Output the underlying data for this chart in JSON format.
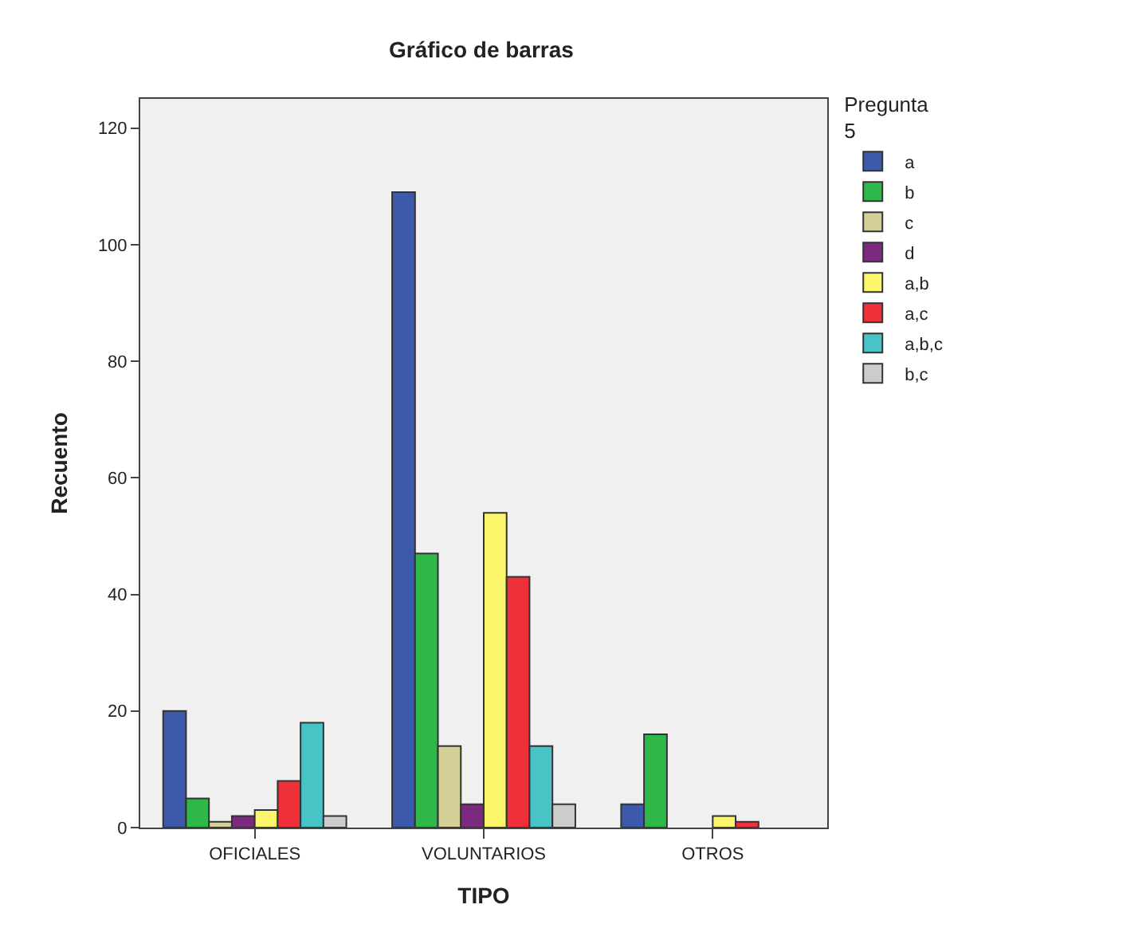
{
  "chart_data": {
    "type": "bar",
    "title": "Gráfico de barras",
    "xlabel": "TIPO",
    "ylabel": "Recuento",
    "legend_title": "Pregunta\n5",
    "categories": [
      "OFICIALES",
      "VOLUNTARIOS",
      "OTROS"
    ],
    "series": [
      {
        "name": "a",
        "color": "#3d59ab",
        "values": [
          20,
          109,
          4
        ]
      },
      {
        "name": "b",
        "color": "#2fb84a",
        "values": [
          5,
          47,
          16
        ]
      },
      {
        "name": "c",
        "color": "#d4cf96",
        "values": [
          1,
          14,
          null
        ]
      },
      {
        "name": "d",
        "color": "#7b2a80",
        "values": [
          2,
          4,
          null
        ]
      },
      {
        "name": "a,b",
        "color": "#fbf66c",
        "values": [
          3,
          54,
          2
        ]
      },
      {
        "name": "a,c",
        "color": "#ee3039",
        "values": [
          8,
          43,
          1
        ]
      },
      {
        "name": "a,b,c",
        "color": "#48c3c6",
        "values": [
          18,
          14,
          null
        ]
      },
      {
        "name": "b,c",
        "color": "#cccccc",
        "values": [
          2,
          4,
          null
        ]
      }
    ],
    "ylim": [
      0,
      125
    ],
    "yticks": [
      0,
      20,
      40,
      60,
      80,
      100,
      120
    ],
    "grid": false,
    "legend": "top right"
  }
}
